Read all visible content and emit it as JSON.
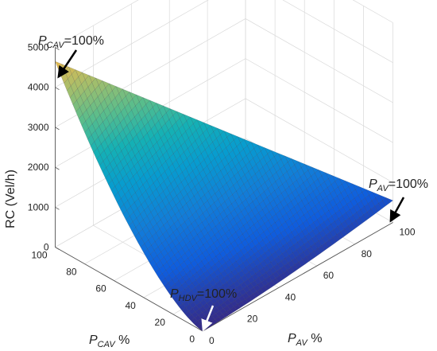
{
  "chart_data": {
    "type": "surface",
    "zlabel": "RC (Vel/h)",
    "xlabel_main": "P",
    "xlabel_sub": "CAV",
    "xlabel_suffix": " %",
    "ylabel_main": "P",
    "ylabel_sub": "AV",
    "ylabel_suffix": " %",
    "ticks_cav": [
      "100",
      "80",
      "60",
      "40",
      "20",
      "0"
    ],
    "ticks_av": [
      "0",
      "20",
      "40",
      "60",
      "80",
      "100"
    ],
    "ticks_z": [
      "0",
      "1000",
      "2000",
      "3000",
      "4000",
      "5000"
    ],
    "xlim": [
      0,
      100
    ],
    "ylim": [
      0,
      100
    ],
    "zlim": [
      0,
      5000
    ],
    "grid": true,
    "colormap": "parula",
    "corner_values": {
      "hdv_100": 0,
      "cav_100": 4650,
      "av_100": 550
    },
    "annotations": [
      {
        "name": "cav-annotation",
        "main": "P",
        "sub": "CAV",
        "text": "=100%"
      },
      {
        "name": "av-annotation",
        "main": "P",
        "sub": "AV",
        "text": "=100%"
      },
      {
        "name": "hdv-annotation",
        "main": "P",
        "sub": "HDV",
        "text": "=100%"
      }
    ]
  }
}
